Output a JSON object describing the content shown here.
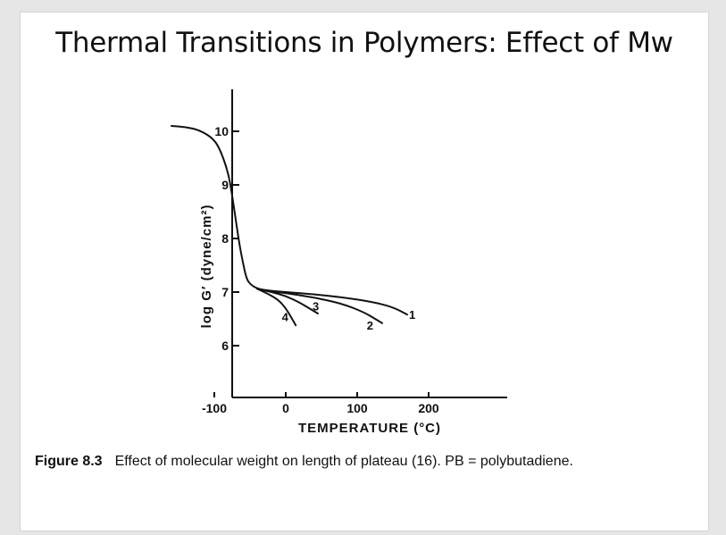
{
  "slide": {
    "title": "Thermal Transitions in Polymers: Effect of Mw"
  },
  "figure": {
    "caption_number": "Figure 8.3",
    "caption_text": "Effect of molecular weight on length of plateau (16). PB = polybutadiene."
  },
  "chart_data": {
    "type": "line",
    "title": "",
    "xlabel": "TEMPERATURE (°C)",
    "ylabel": "log G′ (dyne/cm²)",
    "xlim": [
      -175,
      200
    ],
    "ylim": [
      5,
      10.7
    ],
    "x_ticks": [
      -100,
      0,
      100,
      200
    ],
    "x_tick_labels": [
      "-100",
      "0",
      "100",
      "200"
    ],
    "y_ticks": [
      6,
      7,
      8,
      9,
      10
    ],
    "y_tick_labels": [
      "6",
      "7",
      "8",
      "9",
      "10"
    ],
    "grid": false,
    "line_color": "#111111",
    "series": [
      {
        "name": "1",
        "x": [
          -160,
          -140,
          -120,
          -100,
          -90,
          -80,
          -75,
          -70,
          -65,
          -60,
          -55,
          -50,
          -40,
          -20,
          0,
          40,
          80,
          120,
          150,
          170
        ],
        "y": [
          10.1,
          10.08,
          10.02,
          9.85,
          9.6,
          9.2,
          8.8,
          8.35,
          7.9,
          7.55,
          7.25,
          7.15,
          7.06,
          7.02,
          7.0,
          6.96,
          6.9,
          6.82,
          6.72,
          6.58
        ]
      },
      {
        "name": "2",
        "x": [
          -40,
          -20,
          0,
          40,
          80,
          110,
          125,
          135
        ],
        "y": [
          7.06,
          7.01,
          6.98,
          6.9,
          6.78,
          6.62,
          6.5,
          6.42
        ]
      },
      {
        "name": "3",
        "x": [
          -40,
          -20,
          0,
          20,
          35,
          45
        ],
        "y": [
          7.06,
          7.0,
          6.93,
          6.8,
          6.68,
          6.6
        ]
      },
      {
        "name": "4",
        "x": [
          -40,
          -25,
          -10,
          0,
          8,
          14
        ],
        "y": [
          7.06,
          6.97,
          6.85,
          6.7,
          6.52,
          6.38
        ]
      }
    ],
    "annotations": [
      {
        "text": "1",
        "x": 177,
        "y": 6.5
      },
      {
        "text": "2",
        "x": 118,
        "y": 6.3
      },
      {
        "text": "3",
        "x": 42,
        "y": 6.66
      },
      {
        "text": "4",
        "x": -1,
        "y": 6.46
      }
    ]
  }
}
